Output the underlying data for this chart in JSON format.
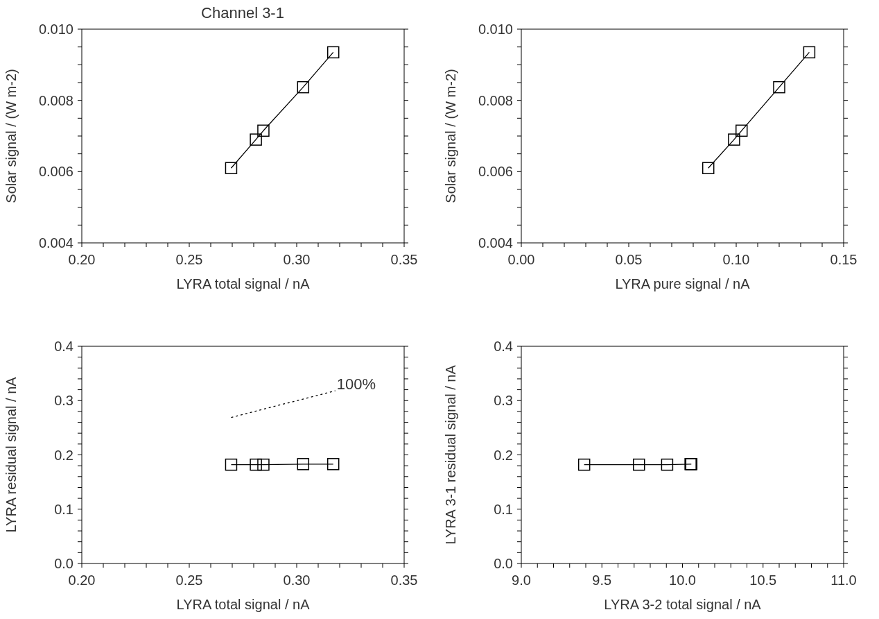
{
  "chart_data": [
    {
      "type": "line",
      "title": "Channel 3-1",
      "xlabel": "LYRA total signal / nA",
      "ylabel": "Solar signal / (W m-2)",
      "marker": "square",
      "line_style": "solid",
      "grid": false,
      "legend": false,
      "xlim": [
        0.2,
        0.35
      ],
      "xticks": [
        {
          "value": 0.2,
          "label": "0.20"
        },
        {
          "value": 0.21,
          "label": null
        },
        {
          "value": 0.22,
          "label": null
        },
        {
          "value": 0.23,
          "label": null
        },
        {
          "value": 0.24,
          "label": null
        },
        {
          "value": 0.25,
          "label": "0.25"
        },
        {
          "value": 0.26,
          "label": null
        },
        {
          "value": 0.27,
          "label": null
        },
        {
          "value": 0.28,
          "label": null
        },
        {
          "value": 0.29,
          "label": null
        },
        {
          "value": 0.3,
          "label": "0.30"
        },
        {
          "value": 0.31,
          "label": null
        },
        {
          "value": 0.32,
          "label": null
        },
        {
          "value": 0.33,
          "label": null
        },
        {
          "value": 0.34,
          "label": null
        },
        {
          "value": 0.35,
          "label": "0.35"
        }
      ],
      "ylim": [
        0.004,
        0.01
      ],
      "yticks": [
        {
          "value": 0.004,
          "label": "0.004"
        },
        {
          "value": 0.0045,
          "label": null
        },
        {
          "value": 0.005,
          "label": null
        },
        {
          "value": 0.0055,
          "label": null
        },
        {
          "value": 0.006,
          "label": "0.006"
        },
        {
          "value": 0.0065,
          "label": null
        },
        {
          "value": 0.007,
          "label": null
        },
        {
          "value": 0.0075,
          "label": null
        },
        {
          "value": 0.008,
          "label": "0.008"
        },
        {
          "value": 0.0085,
          "label": null
        },
        {
          "value": 0.009,
          "label": null
        },
        {
          "value": 0.0095,
          "label": null
        },
        {
          "value": 0.01,
          "label": "0.010"
        }
      ],
      "series": [
        {
          "color": "#000000",
          "x": [
            0.2695,
            0.281,
            0.2845,
            0.303,
            0.317
          ],
          "values": [
            0.0061,
            0.0069,
            0.00715,
            0.00837,
            0.00935
          ]
        }
      ]
    },
    {
      "type": "line",
      "xlabel": "LYRA pure signal / nA",
      "ylabel": "Solar signal / (W m-2)",
      "marker": "square",
      "line_style": "solid",
      "grid": false,
      "legend": false,
      "xlim": [
        0,
        0.15
      ],
      "xticks": [
        {
          "value": 0,
          "label": "0.00"
        },
        {
          "value": 0.01,
          "label": null
        },
        {
          "value": 0.02,
          "label": null
        },
        {
          "value": 0.03,
          "label": null
        },
        {
          "value": 0.04,
          "label": null
        },
        {
          "value": 0.05,
          "label": "0.05"
        },
        {
          "value": 0.06,
          "label": null
        },
        {
          "value": 0.07,
          "label": null
        },
        {
          "value": 0.08,
          "label": null
        },
        {
          "value": 0.09,
          "label": null
        },
        {
          "value": 0.1,
          "label": "0.10"
        },
        {
          "value": 0.11,
          "label": null
        },
        {
          "value": 0.12,
          "label": null
        },
        {
          "value": 0.13,
          "label": null
        },
        {
          "value": 0.14,
          "label": null
        },
        {
          "value": 0.15,
          "label": "0.15"
        }
      ],
      "ylim": [
        0.004,
        0.01
      ],
      "yticks": [
        {
          "value": 0.004,
          "label": "0.004"
        },
        {
          "value": 0.0045,
          "label": null
        },
        {
          "value": 0.005,
          "label": null
        },
        {
          "value": 0.0055,
          "label": null
        },
        {
          "value": 0.006,
          "label": "0.006"
        },
        {
          "value": 0.0065,
          "label": null
        },
        {
          "value": 0.007,
          "label": null
        },
        {
          "value": 0.0075,
          "label": null
        },
        {
          "value": 0.008,
          "label": "0.008"
        },
        {
          "value": 0.0085,
          "label": null
        },
        {
          "value": 0.009,
          "label": null
        },
        {
          "value": 0.0095,
          "label": null
        },
        {
          "value": 0.01,
          "label": "0.010"
        }
      ],
      "series": [
        {
          "color": "#000000",
          "x": [
            0.087,
            0.099,
            0.1025,
            0.12,
            0.134
          ],
          "values": [
            0.0061,
            0.0069,
            0.00715,
            0.00837,
            0.00935
          ]
        }
      ]
    },
    {
      "type": "line",
      "xlabel": "LYRA total signal / nA",
      "ylabel": "LYRA residual signal / nA",
      "marker": "square",
      "line_style": "solid",
      "grid": false,
      "legend": false,
      "xlim": [
        0.2,
        0.35
      ],
      "xticks": [
        {
          "value": 0.2,
          "label": "0.20"
        },
        {
          "value": 0.21,
          "label": null
        },
        {
          "value": 0.22,
          "label": null
        },
        {
          "value": 0.23,
          "label": null
        },
        {
          "value": 0.24,
          "label": null
        },
        {
          "value": 0.25,
          "label": "0.25"
        },
        {
          "value": 0.26,
          "label": null
        },
        {
          "value": 0.27,
          "label": null
        },
        {
          "value": 0.28,
          "label": null
        },
        {
          "value": 0.29,
          "label": null
        },
        {
          "value": 0.3,
          "label": "0.30"
        },
        {
          "value": 0.31,
          "label": null
        },
        {
          "value": 0.32,
          "label": null
        },
        {
          "value": 0.33,
          "label": null
        },
        {
          "value": 0.34,
          "label": null
        },
        {
          "value": 0.35,
          "label": "0.35"
        }
      ],
      "ylim": [
        0,
        0.4
      ],
      "yticks": [
        {
          "value": 0,
          "label": "0.0"
        },
        {
          "value": 0.02,
          "label": null
        },
        {
          "value": 0.04,
          "label": null
        },
        {
          "value": 0.06,
          "label": null
        },
        {
          "value": 0.08,
          "label": null
        },
        {
          "value": 0.1,
          "label": "0.1"
        },
        {
          "value": 0.12,
          "label": null
        },
        {
          "value": 0.14,
          "label": null
        },
        {
          "value": 0.16,
          "label": null
        },
        {
          "value": 0.18,
          "label": null
        },
        {
          "value": 0.2,
          "label": "0.2"
        },
        {
          "value": 0.22,
          "label": null
        },
        {
          "value": 0.24,
          "label": null
        },
        {
          "value": 0.26,
          "label": null
        },
        {
          "value": 0.28,
          "label": null
        },
        {
          "value": 0.3,
          "label": "0.3"
        },
        {
          "value": 0.32,
          "label": null
        },
        {
          "value": 0.34,
          "label": null
        },
        {
          "value": 0.36,
          "label": null
        },
        {
          "value": 0.38,
          "label": null
        },
        {
          "value": 0.4,
          "label": "0.4"
        }
      ],
      "annotations": [
        {
          "text": "100%",
          "x": 0.318,
          "y": 0.318
        }
      ],
      "series": [
        {
          "color": "#000000",
          "x": [
            0.2695,
            0.281,
            0.2845,
            0.303,
            0.317
          ],
          "values": [
            0.182,
            0.182,
            0.182,
            0.183,
            0.183
          ]
        },
        {
          "type": "line",
          "color": "#000000",
          "marker": "none",
          "line_style": "dotted",
          "x": [
            0.2695,
            0.318
          ],
          "values": [
            0.269,
            0.318
          ]
        }
      ]
    },
    {
      "type": "line",
      "xlabel": "LYRA 3-2 total signal / nA",
      "ylabel": "LYRA 3-1 residual signal / nA",
      "marker": "square",
      "line_style": "solid",
      "grid": false,
      "legend": false,
      "xlim": [
        9,
        11
      ],
      "xticks": [
        {
          "value": 9,
          "label": "9.0"
        },
        {
          "value": 9.1,
          "label": null
        },
        {
          "value": 9.2,
          "label": null
        },
        {
          "value": 9.3,
          "label": null
        },
        {
          "value": 9.4,
          "label": null
        },
        {
          "value": 9.5,
          "label": "9.5"
        },
        {
          "value": 9.6,
          "label": null
        },
        {
          "value": 9.7,
          "label": null
        },
        {
          "value": 9.8,
          "label": null
        },
        {
          "value": 9.9,
          "label": null
        },
        {
          "value": 10,
          "label": "10.0"
        },
        {
          "value": 10.1,
          "label": null
        },
        {
          "value": 10.2,
          "label": null
        },
        {
          "value": 10.3,
          "label": null
        },
        {
          "value": 10.4,
          "label": null
        },
        {
          "value": 10.5,
          "label": "10.5"
        },
        {
          "value": 10.6,
          "label": null
        },
        {
          "value": 10.7,
          "label": null
        },
        {
          "value": 10.8,
          "label": null
        },
        {
          "value": 10.9,
          "label": null
        },
        {
          "value": 11,
          "label": "11.0"
        }
      ],
      "ylim": [
        0,
        0.4
      ],
      "yticks": [
        {
          "value": 0,
          "label": "0.0"
        },
        {
          "value": 0.02,
          "label": null
        },
        {
          "value": 0.04,
          "label": null
        },
        {
          "value": 0.06,
          "label": null
        },
        {
          "value": 0.08,
          "label": null
        },
        {
          "value": 0.1,
          "label": "0.1"
        },
        {
          "value": 0.12,
          "label": null
        },
        {
          "value": 0.14,
          "label": null
        },
        {
          "value": 0.16,
          "label": null
        },
        {
          "value": 0.18,
          "label": null
        },
        {
          "value": 0.2,
          "label": "0.2"
        },
        {
          "value": 0.22,
          "label": null
        },
        {
          "value": 0.24,
          "label": null
        },
        {
          "value": 0.26,
          "label": null
        },
        {
          "value": 0.28,
          "label": null
        },
        {
          "value": 0.3,
          "label": "0.3"
        },
        {
          "value": 0.32,
          "label": null
        },
        {
          "value": 0.34,
          "label": null
        },
        {
          "value": 0.36,
          "label": null
        },
        {
          "value": 0.38,
          "label": null
        },
        {
          "value": 0.4,
          "label": "0.4"
        }
      ],
      "series": [
        {
          "color": "#000000",
          "x": [
            9.39,
            9.73,
            9.905,
            10.05,
            10.055
          ],
          "values": [
            0.182,
            0.182,
            0.182,
            0.183,
            0.183
          ]
        }
      ]
    }
  ]
}
